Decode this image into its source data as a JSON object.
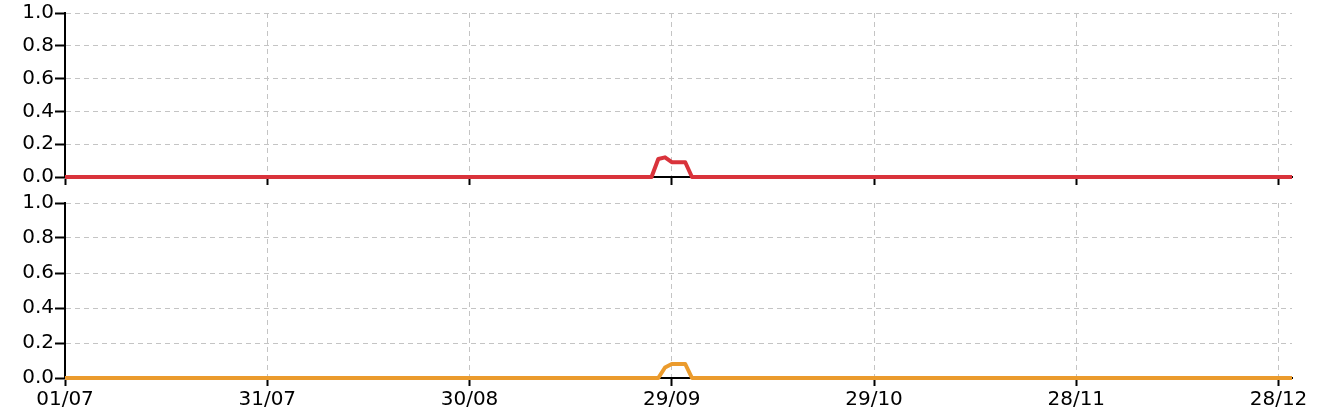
{
  "chart_data": [
    {
      "type": "line",
      "x": [
        "--07-01",
        "--09-26",
        "--09-27",
        "--09-28",
        "--09-29",
        "--10-01",
        "--10-02",
        "--12-30"
      ],
      "series": [
        {
          "color": "#d9333b",
          "values": [
            0,
            0,
            0.11,
            0.12,
            0.09,
            0.09,
            0,
            0
          ]
        }
      ],
      "xlim": [
        "--07-01",
        "--12-30"
      ],
      "xticks": [
        {
          "value": "--07-01",
          "label": "01/07"
        },
        {
          "value": "--07-31",
          "label": "31/07"
        },
        {
          "value": "--08-30",
          "label": "30/08"
        },
        {
          "value": "--09-29",
          "label": "29/09"
        },
        {
          "value": "--10-29",
          "label": "29/10"
        },
        {
          "value": "--11-28",
          "label": "28/11"
        },
        {
          "value": "--12-28",
          "label": "28/12"
        }
      ],
      "ylim": [
        0,
        1
      ],
      "yticks": [
        {
          "value": 0,
          "label": "0.0"
        },
        {
          "value": 0.2,
          "label": "0.2"
        },
        {
          "value": 0.4,
          "label": "0.4"
        },
        {
          "value": 0.6,
          "label": "0.6"
        },
        {
          "value": 0.8,
          "label": "0.8"
        },
        {
          "value": 1,
          "label": "1.0"
        }
      ],
      "grid": true,
      "tick_labels": "y"
    },
    {
      "type": "line",
      "x": [
        "--07-01",
        "--09-27",
        "--09-28",
        "--09-29",
        "--10-01",
        "--10-02",
        "--12-30"
      ],
      "series": [
        {
          "color": "#eb9b2d",
          "values": [
            0,
            0,
            0.06,
            0.08,
            0.08,
            0,
            0
          ]
        }
      ],
      "xlim": [
        "--07-01",
        "--12-30"
      ],
      "xticks": [
        {
          "value": "--07-01",
          "label": "01/07"
        },
        {
          "value": "--07-31",
          "label": "31/07"
        },
        {
          "value": "--08-30",
          "label": "30/08"
        },
        {
          "value": "--09-29",
          "label": "29/09"
        },
        {
          "value": "--10-29",
          "label": "29/10"
        },
        {
          "value": "--11-28",
          "label": "28/11"
        },
        {
          "value": "--12-28",
          "label": "28/12"
        }
      ],
      "ylim": [
        0,
        1
      ],
      "yticks": [
        {
          "value": 0,
          "label": "0.0"
        },
        {
          "value": 0.2,
          "label": "0.2"
        },
        {
          "value": 0.4,
          "label": "0.4"
        },
        {
          "value": 0.6,
          "label": "0.6"
        },
        {
          "value": 0.8,
          "label": "0.8"
        },
        {
          "value": 1,
          "label": "1.0"
        }
      ],
      "grid": true
    }
  ]
}
